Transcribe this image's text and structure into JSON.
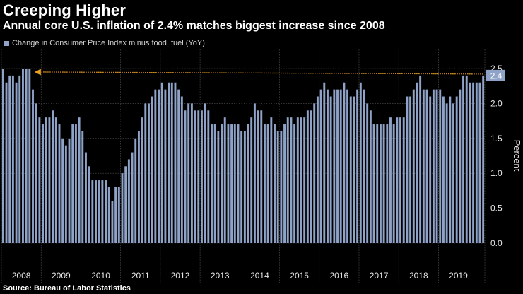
{
  "header": {
    "title": "Creeping Higher",
    "subtitle": "Annual core U.S. inflation of 2.4% matches biggest increase since 2008"
  },
  "legend": {
    "label": "Change in Consumer Price Index minus food, fuel (YoY)"
  },
  "source": "Source: Bureau of Labor Statistics",
  "colors": {
    "bar": "#8fa3c8",
    "arrow": "#f0a020",
    "grid": "#555555",
    "background": "#000000"
  },
  "chart_data": {
    "type": "bar",
    "title": "Creeping Higher",
    "subtitle": "Annual core U.S. inflation of 2.4% matches biggest increase since 2008",
    "ylabel": "Percent",
    "ylim": [
      -0.3,
      2.75
    ],
    "yticks": [
      0.0,
      0.5,
      1.0,
      1.5,
      2.0,
      2.5
    ],
    "ytick_labels": [
      "0.0",
      "0.5",
      "1.0",
      "1.5",
      "2.0",
      "2.5"
    ],
    "x_labels": [
      "2008",
      "2009",
      "2010",
      "2011",
      "2012",
      "2013",
      "2014",
      "2015",
      "2016",
      "2017",
      "2018",
      "2019"
    ],
    "grid": true,
    "last_value_label": "2.4",
    "annotation": "dotted arrow from latest value back to early 2008 level",
    "series": [
      {
        "name": "Change in Consumer Price Index minus food, fuel (YoY)",
        "values": [
          2.5,
          2.3,
          2.4,
          2.4,
          2.3,
          2.4,
          2.5,
          2.5,
          2.5,
          2.2,
          2.0,
          1.8,
          1.7,
          1.8,
          1.8,
          1.9,
          1.8,
          1.7,
          1.5,
          1.4,
          1.5,
          1.7,
          1.7,
          1.8,
          1.6,
          1.3,
          1.1,
          0.9,
          0.9,
          0.9,
          0.9,
          0.9,
          0.8,
          0.6,
          0.8,
          0.8,
          1.0,
          1.1,
          1.2,
          1.3,
          1.5,
          1.6,
          1.8,
          2.0,
          2.0,
          2.1,
          2.2,
          2.2,
          2.3,
          2.2,
          2.3,
          2.3,
          2.3,
          2.2,
          2.1,
          1.9,
          2.0,
          2.0,
          1.9,
          1.9,
          1.9,
          2.0,
          1.9,
          1.7,
          1.7,
          1.6,
          1.7,
          1.8,
          1.7,
          1.7,
          1.7,
          1.7,
          1.6,
          1.6,
          1.7,
          1.8,
          2.0,
          1.9,
          1.9,
          1.7,
          1.7,
          1.8,
          1.7,
          1.6,
          1.6,
          1.7,
          1.8,
          1.8,
          1.7,
          1.8,
          1.8,
          1.8,
          1.9,
          1.9,
          2.0,
          2.1,
          2.2,
          2.3,
          2.2,
          2.1,
          2.2,
          2.2,
          2.2,
          2.3,
          2.2,
          2.1,
          2.1,
          2.2,
          2.3,
          2.2,
          2.0,
          1.9,
          1.7,
          1.7,
          1.7,
          1.7,
          1.7,
          1.8,
          1.7,
          1.8,
          1.8,
          1.8,
          2.1,
          2.1,
          2.2,
          2.3,
          2.4,
          2.2,
          2.2,
          2.1,
          2.2,
          2.2,
          2.2,
          2.1,
          2.0,
          2.1,
          2.0,
          2.1,
          2.2,
          2.4,
          2.4,
          2.3,
          2.3,
          2.3,
          2.3,
          2.4
        ]
      }
    ]
  }
}
